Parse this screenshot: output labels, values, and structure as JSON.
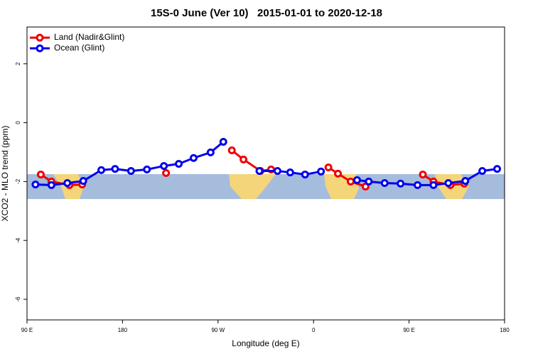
{
  "chart_data": {
    "type": "line",
    "title": "15S-0 June (Ver 10)   2015-01-01 to 2020-12-18",
    "x_label": "Longitude (deg E)",
    "y_label": "XCO2 - MLO trend (ppm)",
    "xlim": [
      90,
      540
    ],
    "xticks": [
      {
        "value": 90,
        "label": "90 E"
      },
      {
        "value": 180,
        "label": "180"
      },
      {
        "value": 270,
        "label": "90 W"
      },
      {
        "value": 360,
        "label": "0"
      },
      {
        "value": 450,
        "label": "90 E"
      },
      {
        "value": 540,
        "label": "180"
      }
    ],
    "ylim": [
      -6.7,
      3.25
    ],
    "yticks": [
      -6,
      -4,
      -2,
      0,
      2
    ],
    "legend": "top-left",
    "series": [
      {
        "name": "Land (Nadir&Glint)",
        "color": "#ee0000",
        "x": [
          103,
          113,
          130,
          142,
          null,
          221,
          null,
          283,
          294,
          310,
          320,
          null,
          374,
          383,
          395,
          409,
          null,
          463,
          473,
          489,
          502
        ],
        "values": [
          -1.76,
          -2.0,
          -2.12,
          -2.1,
          null,
          -1.71,
          null,
          -0.94,
          -1.25,
          -1.64,
          -1.59,
          null,
          -1.52,
          -1.73,
          -2.0,
          -2.17,
          null,
          -1.76,
          -2.0,
          -2.12,
          -2.07
        ]
      },
      {
        "name": "Ocean (Glint)",
        "color": "#0000ee",
        "x": [
          98,
          113,
          128,
          143,
          160,
          173,
          188,
          203,
          219,
          233,
          247,
          263,
          275,
          null,
          309,
          326,
          338,
          352,
          367,
          null,
          401,
          412,
          427,
          442,
          458,
          473,
          487,
          503,
          519,
          533
        ],
        "values": [
          -2.1,
          -2.12,
          -2.05,
          -1.98,
          -1.61,
          -1.57,
          -1.64,
          -1.59,
          -1.47,
          -1.4,
          -1.2,
          -1.01,
          -0.65,
          null,
          -1.64,
          -1.64,
          -1.69,
          -1.76,
          -1.66,
          null,
          -1.95,
          -2.0,
          -2.05,
          -2.07,
          -2.12,
          -2.12,
          -2.05,
          -1.98,
          -1.64,
          -1.57
        ]
      }
    ]
  }
}
